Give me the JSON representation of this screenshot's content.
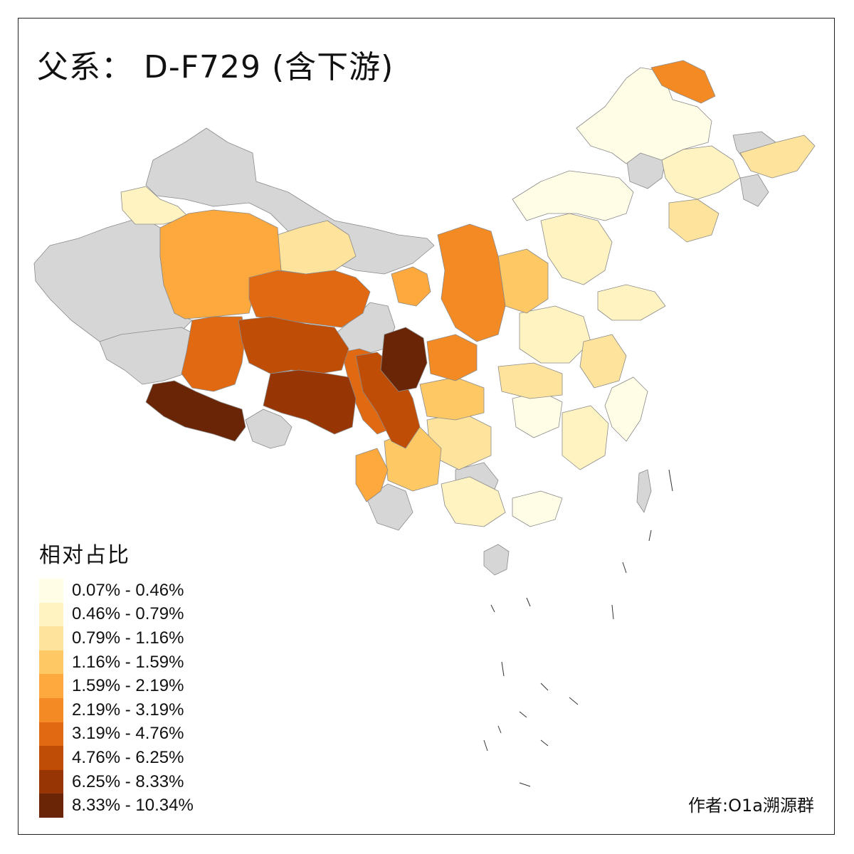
{
  "title": "父系：  D-F729 (含下游)",
  "legend": {
    "title": "相对占比",
    "items": [
      {
        "label": "0.07% - 0.46%",
        "color": "#fffde6"
      },
      {
        "label": "0.46% - 0.79%",
        "color": "#fff3c2"
      },
      {
        "label": "0.79% - 1.16%",
        "color": "#fee39c"
      },
      {
        "label": "1.16% - 1.59%",
        "color": "#fec965"
      },
      {
        "label": "1.59% - 2.19%",
        "color": "#fda93e"
      },
      {
        "label": "2.19% - 3.19%",
        "color": "#f48a24"
      },
      {
        "label": "3.19% - 4.76%",
        "color": "#e06912"
      },
      {
        "label": "4.76% - 6.25%",
        "color": "#c04d06"
      },
      {
        "label": "6.25% - 8.33%",
        "color": "#973604"
      },
      {
        "label": "8.33% - 10.34%",
        "color": "#6a2506"
      }
    ]
  },
  "no_data_color": "#d6d6d6",
  "author": "作者:O1a溯源群"
}
